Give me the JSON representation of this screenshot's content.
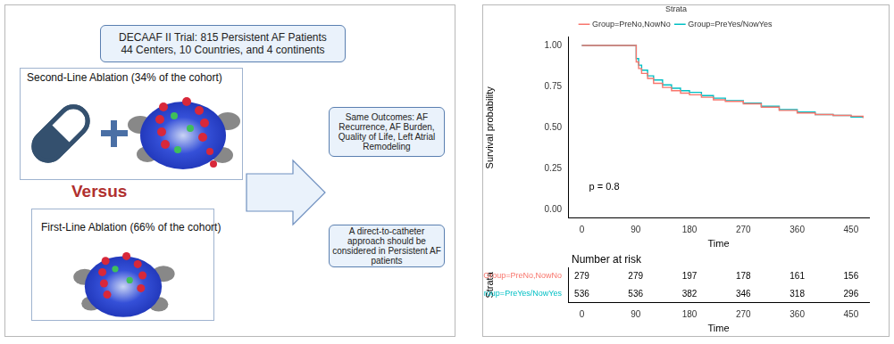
{
  "diagram": {
    "header": {
      "lines": [
        "DECAAF II Trial: 815 Persistent AF Patients",
        "44 Centers, 10 Countries, and 4 continents"
      ]
    },
    "second_line": {
      "label": "Second-Line Ablation (34% of the cohort)"
    },
    "versus": "Versus",
    "first_line": {
      "label": "First-Line Ablation (66% of the cohort)"
    },
    "outcomes": "Same Outcomes: AF Recurrence, AF Burden, Quality of Life, Left Atrial Remodeling",
    "conclusion": "A direct-to-catheter approach should be considered in Persistent AF patients"
  },
  "chart_data": [
    {
      "type": "line",
      "legend_title": "Strata",
      "x_label": "Time",
      "y_label": "Survival probability",
      "annotations": [
        "p = 0.8"
      ],
      "line_style": "step",
      "legend": "top",
      "grid": false,
      "xlim": [
        -23,
        480
      ],
      "xticks": [
        0,
        90,
        180,
        270,
        360,
        450
      ],
      "ylim": [
        -0.05,
        1.05
      ],
      "yticks": [
        {
          "value": 0,
          "label": "0.00"
        },
        {
          "value": 0.25,
          "label": "0.25"
        },
        {
          "value": 0.5,
          "label": "0.50"
        },
        {
          "value": 0.75,
          "label": "0.75"
        },
        {
          "value": 1,
          "label": "1.00"
        }
      ],
      "series": [
        {
          "name": "Group=PreNo,NowNo",
          "color": "#F8766D",
          "x": [
            0,
            90,
            91,
            95,
            100,
            110,
            120,
            135,
            150,
            165,
            180,
            200,
            220,
            240,
            270,
            300,
            330,
            360,
            390,
            420,
            450,
            470
          ],
          "values": [
            1,
            1,
            0.9,
            0.86,
            0.83,
            0.8,
            0.77,
            0.745,
            0.725,
            0.71,
            0.7,
            0.685,
            0.67,
            0.66,
            0.645,
            0.625,
            0.605,
            0.59,
            0.58,
            0.575,
            0.57,
            0.56
          ]
        },
        {
          "name": "Group=PreYes/NowYes",
          "color": "#00BFC4",
          "x": [
            0,
            90,
            91,
            95,
            100,
            110,
            120,
            135,
            150,
            165,
            180,
            200,
            220,
            240,
            270,
            300,
            330,
            360,
            390,
            420,
            450,
            470
          ],
          "values": [
            1,
            1,
            0.92,
            0.88,
            0.85,
            0.815,
            0.79,
            0.76,
            0.74,
            0.725,
            0.715,
            0.695,
            0.68,
            0.665,
            0.65,
            0.63,
            0.61,
            0.595,
            0.58,
            0.575,
            0.565,
            0.56
          ]
        }
      ]
    },
    {
      "type": "table",
      "title": "Number at risk",
      "y_label": "Strata",
      "x_label": "Time",
      "data_labels": true,
      "grid": false,
      "xlim": [
        -23,
        480
      ],
      "xticks": [
        0,
        90,
        180,
        270,
        360,
        450
      ],
      "x": [
        0,
        90,
        180,
        270,
        360,
        450
      ],
      "series": [
        {
          "name": "Group=PreNo,NowNo",
          "color": "#F8766D",
          "values": [
            279,
            279,
            197,
            178,
            161,
            156
          ]
        },
        {
          "name": "Group=PreYes/NowYes",
          "color": "#00BFC4",
          "values": [
            536,
            536,
            382,
            346,
            318,
            296
          ]
        }
      ]
    }
  ]
}
